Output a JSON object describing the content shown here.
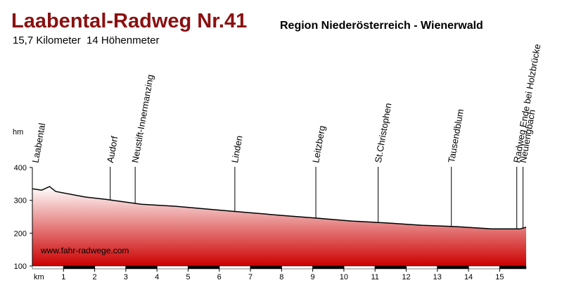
{
  "chart_data": {
    "type": "area",
    "title": "Laabental-Radweg Nr.41",
    "subtitle": "Region Niederösterreich - Wienerwald",
    "description": "15,7 Kilometer  14 Höhenmeter",
    "ylabel": "hm",
    "xlabel": "km",
    "source": "www.fahr-radwege.com",
    "color": "#cc0000",
    "x": [
      0,
      0.3,
      0.55,
      0.75,
      1.7,
      2.35,
      3.5,
      4.6,
      5.3,
      6.4,
      8.0,
      9.1,
      10.25,
      11.4,
      12.5,
      13.6,
      14.75,
      15.65,
      15.85
    ],
    "values": [
      335,
      331,
      342,
      327,
      310,
      303,
      288,
      282,
      276,
      267,
      254,
      246,
      237,
      231,
      224,
      220,
      213,
      213,
      218
    ],
    "xlim": [
      0,
      15.85
    ],
    "xticks": [
      1,
      2,
      3,
      4,
      5,
      6,
      7,
      8,
      9,
      10,
      11,
      12,
      13,
      14,
      15
    ],
    "ylim": [
      100,
      400
    ],
    "yticks": [
      100,
      200,
      300,
      400
    ],
    "places": [
      {
        "name": "Laabental",
        "km": 0.1
      },
      {
        "name": "Audorf",
        "km": 2.5
      },
      {
        "name": "Neustift-Innermanzing",
        "km": 3.3
      },
      {
        "name": "Linden",
        "km": 6.5
      },
      {
        "name": "Leitzberg",
        "km": 9.1
      },
      {
        "name": "St.Christophen",
        "km": 11.1
      },
      {
        "name": "Tausendblum",
        "km": 13.45
      },
      {
        "name": "Radweg Ende bei Holzbrücke",
        "km": 15.55
      },
      {
        "name": "Neulengbach",
        "km": 15.75
      }
    ]
  }
}
